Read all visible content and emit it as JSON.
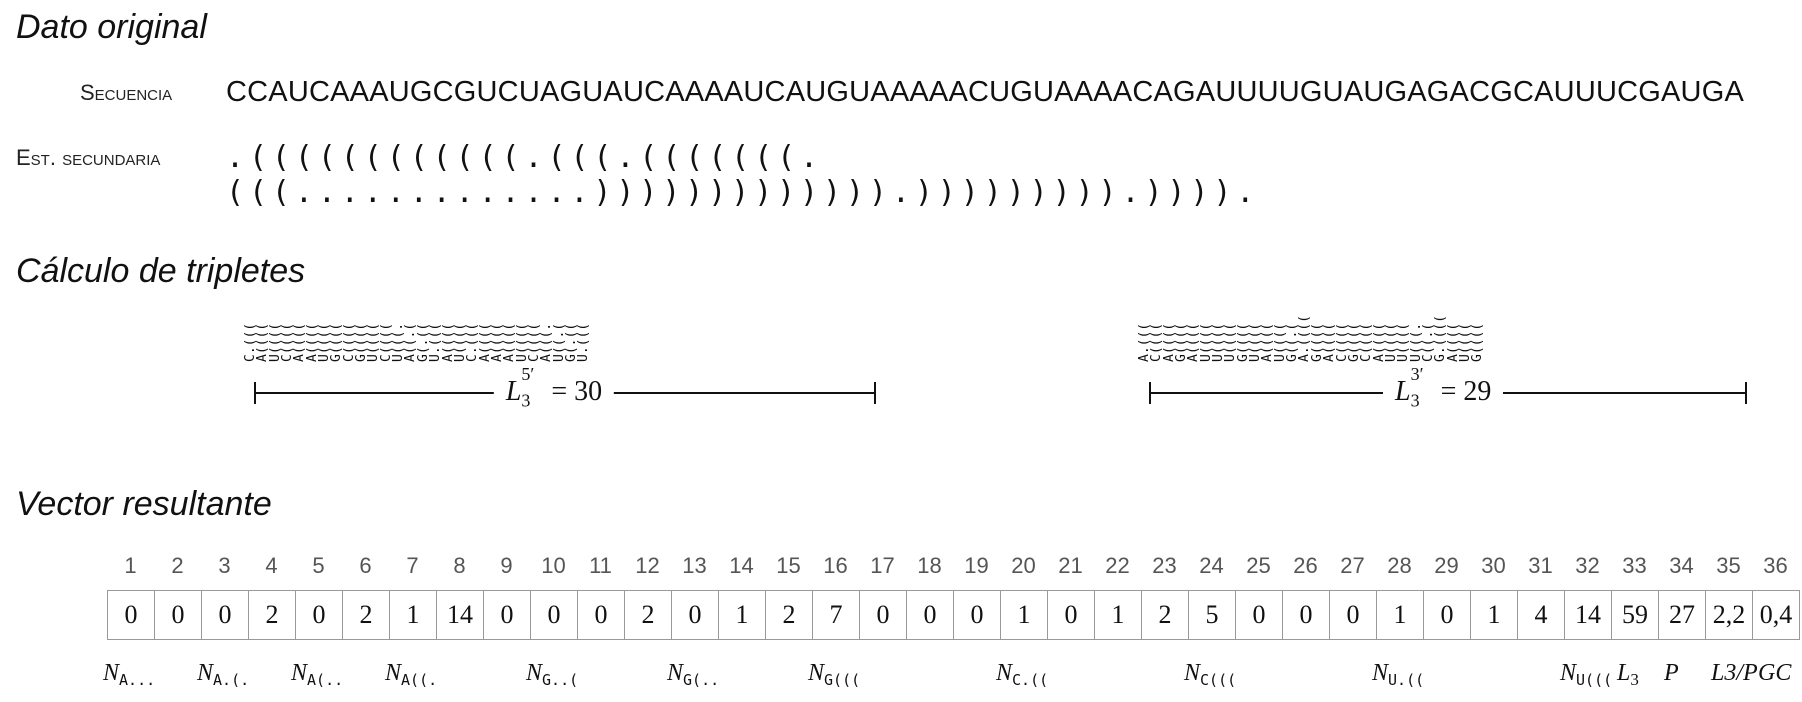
{
  "sections": {
    "original": "Dato original",
    "triplets": "Cálculo de tripletes",
    "vector": "Vector resultante"
  },
  "labels": {
    "sequence": "Secuencia",
    "structure": "Est. secundaria"
  },
  "sequence": "CCAUCAAAUGCGUCUAGUAUCAAAAUCAUGUAAAAACUGUAAAACAGAUUUUGUAUGAGACGCAUUUCGAUGA",
  "structure": ".((((((((((((.(((.(((((((.(((.............))))))))))))).))))))))).)))).",
  "triplets_left": [
    "C.(((",
    "A((((",
    "U((((",
    "C((((",
    "A((((",
    "A((((",
    "U((((",
    "G((((",
    "C((((",
    "G((((",
    "U((((",
    "C((((",
    "U(((.",
    "A((.(",
    "G(.((",
    "U.(((",
    "A((((",
    "U((((",
    "C.(((",
    "A((((",
    "A((((",
    "A((((",
    "U((((",
    "C((((",
    "A(((.",
    "U((.(",
    "G(.((",
    "U.((("
  ],
  "triplets_right": [
    "A.(((",
    "C((((",
    "A((((",
    "G((((",
    "A((((",
    "U((((",
    "U((((",
    "U((((",
    "G((((",
    "U((((",
    "A((((",
    "U((((",
    "G((.(",
    "A.((((",
    "G((((",
    "A((((",
    "C((((",
    "G((((",
    "C((((",
    "A((((",
    "U((((",
    "U((((",
    "U(((.",
    "C((.(",
    "G.((((",
    "A((((",
    "U((((",
    "G(((("
  ],
  "bracket_left": {
    "label": "L",
    "sub": "3",
    "sup": "5′",
    "value": "= 30"
  },
  "bracket_right": {
    "label": "L",
    "sub": "3",
    "sup": "3′",
    "value": "= 29"
  },
  "vector": {
    "indices": [
      "1",
      "2",
      "3",
      "4",
      "5",
      "6",
      "7",
      "8",
      "9",
      "10",
      "11",
      "12",
      "13",
      "14",
      "15",
      "16",
      "17",
      "18",
      "19",
      "20",
      "21",
      "22",
      "23",
      "24",
      "25",
      "26",
      "27",
      "28",
      "29",
      "30",
      "31",
      "32",
      "33",
      "34",
      "35",
      "36"
    ],
    "values": [
      "0",
      "0",
      "0",
      "2",
      "0",
      "2",
      "1",
      "14",
      "0",
      "0",
      "0",
      "2",
      "0",
      "1",
      "2",
      "7",
      "0",
      "0",
      "0",
      "1",
      "0",
      "1",
      "2",
      "5",
      "0",
      "0",
      "0",
      "1",
      "0",
      "1",
      "4",
      "14",
      "59",
      "27",
      "2,2",
      "0,4"
    ]
  },
  "feature_labels": [
    {
      "main": "N",
      "sub": "A..."
    },
    {
      "main": "N",
      "sub": "A.(."
    },
    {
      "main": "N",
      "sub": "A(.."
    },
    {
      "main": "N",
      "sub": "A((."
    },
    {
      "main": "N",
      "sub": "G..("
    },
    {
      "main": "N",
      "sub": "G(.."
    },
    {
      "main": "N",
      "sub": "G((("
    },
    {
      "main": "N",
      "sub": "C.(("
    },
    {
      "main": "N",
      "sub": "C((("
    },
    {
      "main": "N",
      "sub": "U.(("
    },
    {
      "main": "N",
      "sub": "U((("
    },
    {
      "main": "L",
      "sub": "3"
    },
    {
      "main": "P",
      "sub": ""
    },
    {
      "main": "L3/P",
      "sub": ""
    },
    {
      "main": "GC",
      "sub": ""
    }
  ]
}
